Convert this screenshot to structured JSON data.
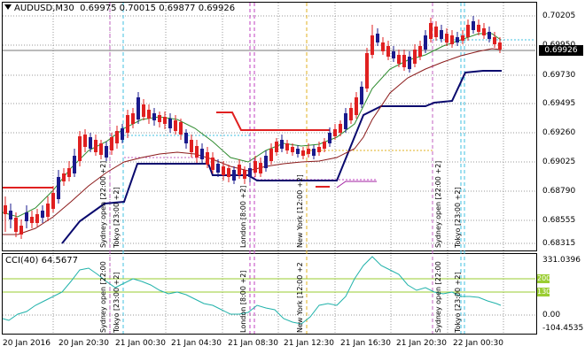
{
  "header": {
    "symbol_timeframe": "AUDUSD,M30",
    "ohlc": "0.69975 0.70015 0.69877 0.69926"
  },
  "price_axis": {
    "ticks": [
      "0.70205",
      "0.69950",
      "0.69730",
      "0.69495",
      "0.69260",
      "0.69025",
      "0.68790",
      "0.68555",
      "0.68315"
    ],
    "current_price": "0.69926"
  },
  "cci_panel": {
    "title": "CCI(40) 64.5677",
    "axis_ticks": [
      "331.0396",
      "0.00",
      "-104.4535"
    ],
    "level_labels": [
      "200",
      "130"
    ]
  },
  "time_axis": {
    "labels": [
      "20 Jan 2016",
      "20 Jan 20:30",
      "21 Jan 00:30",
      "21 Jan 04:30",
      "21 Jan 08:30",
      "21 Jan 12:30",
      "21 Jan 16:30",
      "21 Jan 20:30",
      "22 Jan 00:30"
    ]
  },
  "session_labels": {
    "main": [
      "Sydney open [22:00 +2]",
      "Tokyo [23:00 +2]",
      "London [8:00 +2]",
      "New York [12:00 +2]",
      "Sydney open [22:00 +2]",
      "Tokyo [23:00 +2]"
    ],
    "cci": [
      "Sydney open [22:00",
      "Tokyo [23:00 +2]",
      "London [8:00 +2]",
      "New York [12:00 +2",
      "Sydney open [22:00",
      "Tokyo [23:00 +2]"
    ]
  },
  "colors": {
    "bull": "#1a1a8c",
    "bear": "#e02020",
    "ma_fast": "#2e8b2e",
    "ma_slow": "#8b1a1a",
    "stop_line": "#0a0a6e",
    "cci_line": "#20b2aa",
    "level_line": "#9acd32",
    "sydney": "#c060c0",
    "tokyo": "#40c0e0",
    "london": "#c040c0",
    "newyork": "#e0b020"
  }
}
